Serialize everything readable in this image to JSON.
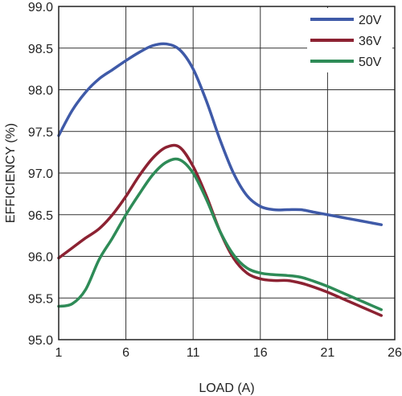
{
  "chart_data": {
    "type": "line",
    "title": "",
    "xlabel": "LOAD (A)",
    "ylabel": "EFFICIENCY (%)",
    "xlim": [
      1,
      26
    ],
    "ylim": [
      95.0,
      99.0
    ],
    "x_ticks": [
      1,
      6,
      11,
      16,
      21,
      26
    ],
    "x_tick_labels": [
      "1",
      "6",
      "11",
      "16",
      "21",
      "26"
    ],
    "y_ticks": [
      95.0,
      95.5,
      96.0,
      96.5,
      97.0,
      97.5,
      98.0,
      98.5,
      99.0
    ],
    "y_tick_labels": [
      "95.0",
      "95.5",
      "96.0",
      "96.5",
      "97.0",
      "97.5",
      "98.0",
      "98.5",
      "99.0"
    ],
    "grid": true,
    "legend_position": "top-right",
    "series": [
      {
        "name": "20V",
        "color": "#3f5aa8",
        "x": [
          1,
          2,
          3,
          4,
          5,
          6,
          7,
          8,
          9,
          10,
          11,
          12,
          13,
          14,
          15,
          16,
          17,
          18,
          19,
          20,
          21,
          22,
          23,
          24,
          25
        ],
        "y": [
          97.45,
          97.75,
          97.97,
          98.13,
          98.24,
          98.35,
          98.45,
          98.53,
          98.55,
          98.48,
          98.25,
          97.86,
          97.4,
          97.0,
          96.73,
          96.6,
          96.56,
          96.56,
          96.56,
          96.53,
          96.5,
          96.47,
          96.44,
          96.41,
          96.38
        ]
      },
      {
        "name": "36V",
        "color": "#8c2232",
        "x": [
          1,
          2,
          3,
          4,
          5,
          6,
          7,
          8,
          9,
          10,
          11,
          12,
          13,
          14,
          15,
          16,
          17,
          18,
          19,
          20,
          21,
          22,
          23,
          24,
          25
        ],
        "y": [
          95.98,
          96.1,
          96.22,
          96.33,
          96.5,
          96.72,
          96.97,
          97.18,
          97.31,
          97.31,
          97.08,
          96.72,
          96.3,
          95.98,
          95.8,
          95.73,
          95.71,
          95.71,
          95.68,
          95.63,
          95.57,
          95.5,
          95.43,
          95.36,
          95.29
        ]
      },
      {
        "name": "50V",
        "color": "#2e8b57",
        "x": [
          1,
          2,
          3,
          4,
          5,
          6,
          7,
          8,
          9,
          10,
          11,
          12,
          13,
          14,
          15,
          16,
          17,
          18,
          19,
          20,
          21,
          22,
          23,
          24,
          25
        ],
        "y": [
          95.4,
          95.43,
          95.6,
          95.96,
          96.22,
          96.5,
          96.75,
          96.98,
          97.13,
          97.16,
          97.0,
          96.68,
          96.3,
          96.02,
          95.86,
          95.8,
          95.78,
          95.77,
          95.75,
          95.7,
          95.64,
          95.57,
          95.5,
          95.43,
          95.36
        ]
      }
    ]
  }
}
